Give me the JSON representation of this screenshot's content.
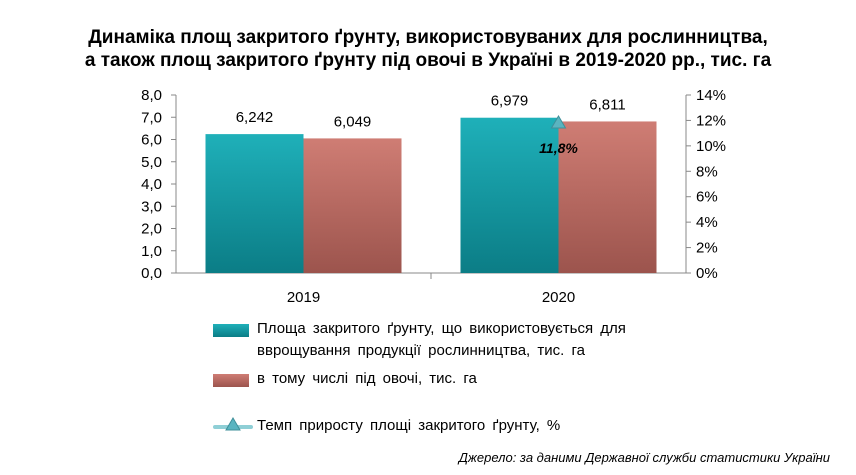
{
  "title": {
    "line1": "Динаміка площ закритого ґрунту, використовуваних для рослинництва,",
    "line2": "а також площ закритого ґрунту під овочі в Україні в 2019-2020 рр., тис. га"
  },
  "chart_data": {
    "type": "bar",
    "categories": [
      "2019",
      "2020"
    ],
    "series": [
      {
        "name": "Площа закритого ґрунту, що використовується для вврощування продукції рослинництва, тис. га",
        "values": [
          6.242,
          6.979
        ],
        "value_labels": [
          "6,242",
          "6,979"
        ],
        "color": "#1aa3ac"
      },
      {
        "name": "в тому числі під овочі, тис. га",
        "values": [
          6.049,
          6.811
        ],
        "value_labels": [
          "6,049",
          "6,811"
        ],
        "color": "#c27067"
      }
    ],
    "line_series": {
      "name": "Темп приросту площі закритого ґрунту, %",
      "axis": "right",
      "points": [
        {
          "category": "2020",
          "value": 11.8,
          "label": "11,8%"
        }
      ],
      "color": "#5ab4c0"
    },
    "y_left": {
      "min": 0,
      "max": 8,
      "step": 1,
      "tick_labels": [
        "0,0",
        "1,0",
        "2,0",
        "3,0",
        "4,0",
        "5,0",
        "6,0",
        "7,0",
        "8,0"
      ]
    },
    "y_right": {
      "min": 0,
      "max": 14,
      "step": 2,
      "tick_labels": [
        "0%",
        "2%",
        "4%",
        "6%",
        "8%",
        "10%",
        "12%",
        "14%"
      ]
    },
    "grid": false,
    "legend_position": "bottom"
  },
  "legend": {
    "item1_line1": "Площа закритого ґрунту, що використовується для",
    "item1_line2": "вврощування продукції рослинництва, тис. га",
    "item2": "в тому числі під овочі, тис. га",
    "item3": "Темп приросту площі закритого ґрунту, %"
  },
  "source": "Джерело: за даними Державної служби статистики України"
}
